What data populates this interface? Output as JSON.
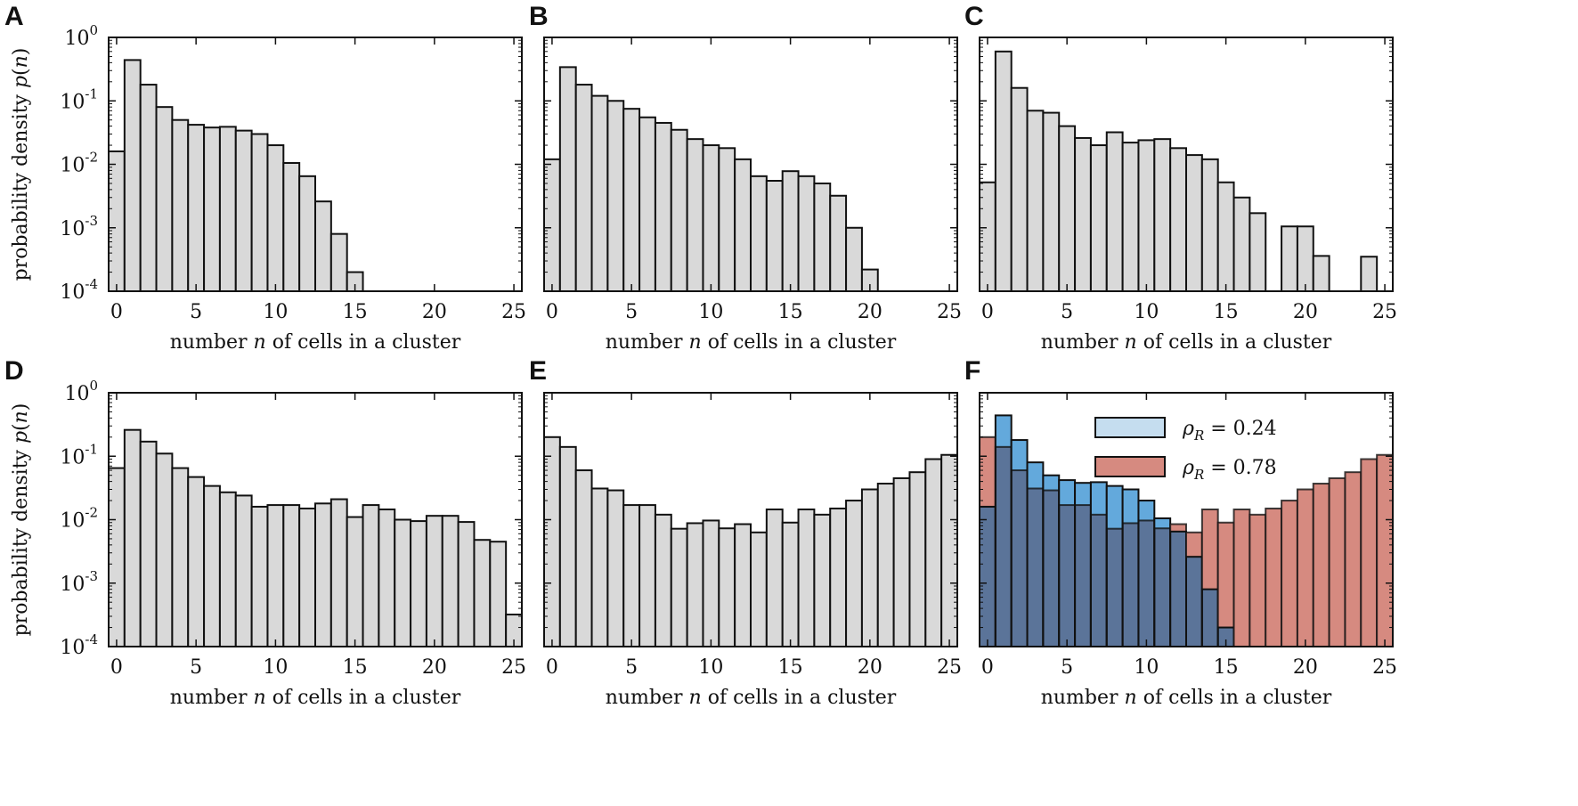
{
  "colors": {
    "gray_bar": "#d9d9d9",
    "blue_bar": "#63a9dc",
    "red_bar": "#d68a80",
    "overlap_bar": "#5b7499",
    "legend_blue": "#c5ddef",
    "legend_red": "#d68a80",
    "edge": "#111111"
  },
  "chart_data": [
    {
      "panel": "A",
      "type": "bar",
      "scale": "log",
      "xlabel": "number n of cells in a cluster",
      "ylabel": "probability density p(n)",
      "xlim": [
        -0.5,
        25.5
      ],
      "ylim": [
        0.0001,
        1
      ],
      "xticks": [
        "0",
        "5",
        "10",
        "15",
        "20",
        "25"
      ],
      "yticks": [
        "10^0",
        "10^-1",
        "10^-2",
        "10^-3",
        "10^-4"
      ],
      "categories": [
        1,
        2,
        3,
        4,
        5,
        6,
        7,
        8,
        9,
        10,
        11,
        12,
        13,
        14,
        15,
        16
      ],
      "series": [
        {
          "name": "p(n)",
          "values": [
            0.016,
            0.44,
            0.18,
            0.08,
            0.05,
            0.042,
            0.038,
            0.039,
            0.034,
            0.03,
            0.02,
            0.0105,
            0.0065,
            0.0026,
            0.0008,
            0.0002
          ]
        }
      ]
    },
    {
      "panel": "B",
      "type": "bar",
      "scale": "log",
      "xlabel": "number n of cells in a cluster",
      "ylabel": "",
      "xlim": [
        -0.5,
        25.5
      ],
      "ylim": [
        0.0001,
        1
      ],
      "xticks": [
        "0",
        "5",
        "10",
        "15",
        "20",
        "25"
      ],
      "categories": [
        1,
        2,
        3,
        4,
        5,
        6,
        7,
        8,
        9,
        10,
        11,
        12,
        13,
        14,
        15,
        16,
        17,
        18,
        19,
        20,
        21
      ],
      "series": [
        {
          "name": "p(n)",
          "values": [
            0.012,
            0.34,
            0.18,
            0.12,
            0.1,
            0.075,
            0.055,
            0.045,
            0.035,
            0.025,
            0.02,
            0.018,
            0.012,
            0.0065,
            0.0055,
            0.0078,
            0.0065,
            0.005,
            0.0032,
            0.001,
            0.00022
          ]
        }
      ]
    },
    {
      "panel": "C",
      "type": "bar",
      "scale": "log",
      "xlabel": "number n of cells in a cluster",
      "ylabel": "",
      "xlim": [
        -0.5,
        25.5
      ],
      "ylim": [
        0.0001,
        1
      ],
      "xticks": [
        "0",
        "5",
        "10",
        "15",
        "20",
        "25"
      ],
      "categories": [
        1,
        2,
        3,
        4,
        5,
        6,
        7,
        8,
        9,
        10,
        11,
        12,
        13,
        14,
        15,
        16,
        17,
        18,
        19,
        20,
        21,
        22,
        23,
        24,
        25
      ],
      "series": [
        {
          "name": "p(n)",
          "values": [
            0.0052,
            0.6,
            0.16,
            0.07,
            0.065,
            0.04,
            0.026,
            0.02,
            0.032,
            0.022,
            0.024,
            0.025,
            0.018,
            0.014,
            0.012,
            0.0052,
            0.003,
            0.0017,
            0,
            0.00105,
            0.00105,
            0.00036,
            0,
            0,
            0.00035
          ]
        }
      ]
    },
    {
      "panel": "D",
      "type": "bar",
      "scale": "log",
      "xlabel": "number n of cells in a cluster",
      "ylabel": "probability density p(n)",
      "xlim": [
        -0.5,
        25.5
      ],
      "ylim": [
        0.0001,
        1
      ],
      "xticks": [
        "0",
        "5",
        "10",
        "15",
        "20",
        "25"
      ],
      "yticks": [
        "10^0",
        "10^-1",
        "10^-2",
        "10^-3",
        "10^-4"
      ],
      "categories": [
        1,
        2,
        3,
        4,
        5,
        6,
        7,
        8,
        9,
        10,
        11,
        12,
        13,
        14,
        15,
        16,
        17,
        18,
        19,
        20,
        21,
        22,
        23,
        24,
        25,
        26
      ],
      "series": [
        {
          "name": "p(n)",
          "values": [
            0.065,
            0.26,
            0.17,
            0.11,
            0.065,
            0.047,
            0.034,
            0.027,
            0.024,
            0.016,
            0.017,
            0.017,
            0.015,
            0.018,
            0.021,
            0.011,
            0.017,
            0.0145,
            0.01,
            0.0095,
            0.0115,
            0.0115,
            0.0092,
            0.0048,
            0.0045,
            0.00032
          ]
        }
      ]
    },
    {
      "panel": "E",
      "type": "bar",
      "scale": "log",
      "xlabel": "number n of cells in a cluster",
      "ylabel": "",
      "xlim": [
        -0.5,
        25.5
      ],
      "ylim": [
        0.0001,
        1
      ],
      "xticks": [
        "0",
        "5",
        "10",
        "15",
        "20",
        "25"
      ],
      "categories": [
        1,
        2,
        3,
        4,
        5,
        6,
        7,
        8,
        9,
        10,
        11,
        12,
        13,
        14,
        15,
        16,
        17,
        18,
        19,
        20,
        21,
        22,
        23,
        24,
        25,
        26
      ],
      "series": [
        {
          "name": "p(n)",
          "values": [
            0.2,
            0.14,
            0.06,
            0.031,
            0.029,
            0.017,
            0.017,
            0.012,
            0.0072,
            0.0088,
            0.0097,
            0.0073,
            0.0085,
            0.0063,
            0.0145,
            0.009,
            0.0145,
            0.012,
            0.015,
            0.02,
            0.03,
            0.037,
            0.045,
            0.056,
            0.09,
            0.105
          ]
        }
      ]
    },
    {
      "panel": "F",
      "type": "bar",
      "scale": "log",
      "xlabel": "number n of cells in a cluster",
      "ylabel": "",
      "xlim": [
        -0.5,
        25.5
      ],
      "ylim": [
        0.0001,
        1
      ],
      "xticks": [
        "0",
        "5",
        "10",
        "15",
        "20",
        "25"
      ],
      "legend": [
        "ρ_R = 0.24",
        "ρ_R = 0.78"
      ],
      "legend_position": "top-right",
      "series": [
        {
          "name": "ρ_R = 0.24",
          "color": "blue",
          "categories": [
            1,
            2,
            3,
            4,
            5,
            6,
            7,
            8,
            9,
            10,
            11,
            12,
            13,
            14,
            15,
            16
          ],
          "values": [
            0.016,
            0.44,
            0.18,
            0.08,
            0.05,
            0.042,
            0.038,
            0.039,
            0.034,
            0.03,
            0.02,
            0.0105,
            0.0065,
            0.0026,
            0.0008,
            0.0002
          ]
        },
        {
          "name": "ρ_R = 0.78",
          "color": "red",
          "categories": [
            1,
            2,
            3,
            4,
            5,
            6,
            7,
            8,
            9,
            10,
            11,
            12,
            13,
            14,
            15,
            16,
            17,
            18,
            19,
            20,
            21,
            22,
            23,
            24,
            25,
            26
          ],
          "values": [
            0.2,
            0.14,
            0.06,
            0.031,
            0.029,
            0.017,
            0.017,
            0.012,
            0.0072,
            0.0088,
            0.0097,
            0.0073,
            0.0085,
            0.0063,
            0.0145,
            0.009,
            0.0145,
            0.012,
            0.015,
            0.02,
            0.03,
            0.037,
            0.045,
            0.056,
            0.09,
            0.105
          ]
        }
      ]
    }
  ]
}
